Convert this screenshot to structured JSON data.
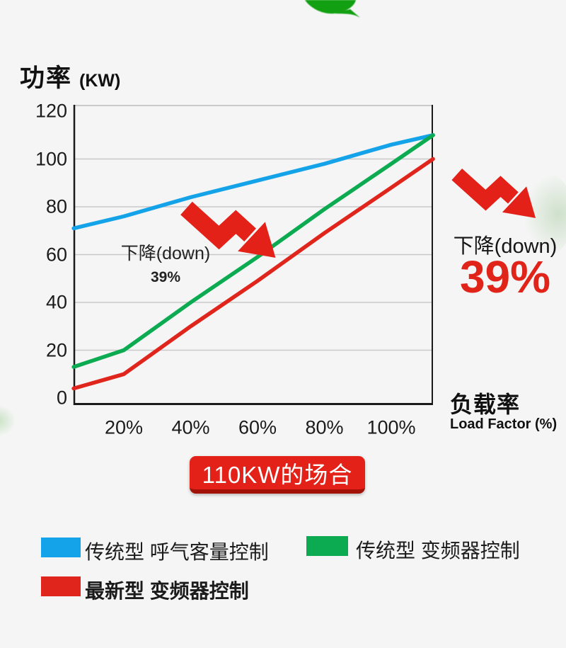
{
  "title": {
    "cn": "功率",
    "unit": "(KW)"
  },
  "axes": {
    "y_ticks": [
      120,
      100,
      80,
      60,
      40,
      20,
      0
    ],
    "x_ticks": [
      "20%",
      "40%",
      "60%",
      "80%",
      "100%"
    ],
    "x_axis_label_cn": "负载率",
    "x_axis_label_en": "Load Factor (%)"
  },
  "chart_data": {
    "type": "line",
    "title": "功率 (KW) vs 负载率 Load Factor (%) — 110KW的场合",
    "xlabel": "负载率 Load Factor (%)",
    "ylabel": "功率 (KW)",
    "ylim": [
      0,
      120
    ],
    "xlim_percent": [
      5,
      112.5
    ],
    "grid": true,
    "gridline_values": [
      20,
      40,
      60,
      80,
      100
    ],
    "x_ticks_percent": [
      20,
      40,
      60,
      80,
      100
    ],
    "legend_position": "bottom",
    "series": [
      {
        "name": "传统型 呼气客量控制",
        "color": "#14a3e8",
        "points": [
          [
            5,
            71
          ],
          [
            20,
            76
          ],
          [
            40,
            84
          ],
          [
            60,
            91
          ],
          [
            80,
            98
          ],
          [
            100,
            106
          ],
          [
            112.5,
            110
          ]
        ]
      },
      {
        "name": "传统型 变频器控制",
        "color": "#0cab52",
        "points": [
          [
            5,
            13
          ],
          [
            20,
            20
          ],
          [
            40,
            40
          ],
          [
            60,
            59
          ],
          [
            80,
            79
          ],
          [
            100,
            98
          ],
          [
            112.5,
            110
          ]
        ]
      },
      {
        "name": "最新型 变频器控制",
        "color": "#e0251c",
        "points": [
          [
            5,
            4
          ],
          [
            20,
            10
          ],
          [
            40,
            30
          ],
          [
            60,
            49
          ],
          [
            80,
            69
          ],
          [
            100,
            88
          ],
          [
            112.5,
            100
          ]
        ]
      }
    ],
    "annotations": [
      {
        "text": "下降(down)",
        "value": "39%",
        "location": "inside-chart"
      },
      {
        "text": "下降(down)",
        "value": "39%",
        "location": "right-of-chart"
      }
    ]
  },
  "annotation_chart": {
    "line1": "下降(down)",
    "line2": "39%"
  },
  "callout": {
    "line1": "下降(down)",
    "line2": "39%"
  },
  "badge": {
    "label": "110KW的场合"
  },
  "legend": [
    {
      "label": "传统型 呼气客量控制",
      "color": "#14a3e8",
      "bold": false
    },
    {
      "label": "传统型 变频器控制",
      "color": "#0cab52",
      "bold": false
    },
    {
      "label": "最新型 变频器控制",
      "color": "#e0251c",
      "bold": true
    }
  ],
  "colors": {
    "background": "#f4f5f4",
    "axis": "#1a1a1a",
    "gridline": "#c9c9c9",
    "arrow_red": "#e32119",
    "badge_red": "#e32119",
    "badge_edge": "#a31208",
    "value_red": "#e0241a",
    "leaf_green": "#12a012"
  }
}
